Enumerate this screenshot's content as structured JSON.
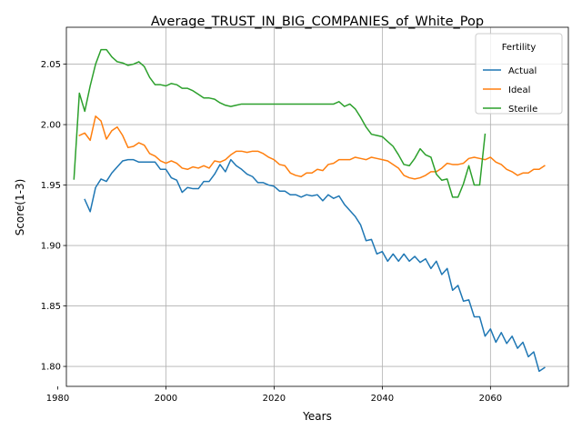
{
  "chart_data": {
    "type": "line",
    "title": "Average_TRUST_IN_BIG_COMPANIES_of_White_Pop",
    "xlabel": "Years",
    "ylabel": "Score(1-3)",
    "xlim": [
      1981.6,
      2074.4
    ],
    "ylim": [
      1.7835,
      2.0805
    ],
    "xticks": [
      1980,
      2000,
      2020,
      2040,
      2060
    ],
    "yticks": [
      1.8,
      1.85,
      1.9,
      1.95,
      2.0,
      2.05
    ],
    "xtick_labels": [
      "1980",
      "2000",
      "2020",
      "2040",
      "2060"
    ],
    "ytick_labels": [
      "1.80",
      "1.85",
      "1.90",
      "1.95",
      "2.00",
      "2.05"
    ],
    "grid": true,
    "legend": {
      "title": "Fertility",
      "placement": "top-right"
    },
    "series": [
      {
        "name": "Actual",
        "color": "#1f77b4",
        "x": [
          1985,
          1986,
          1987,
          1988,
          1989,
          1990,
          1991,
          1992,
          1993,
          1994,
          1995,
          1996,
          1997,
          1998,
          1999,
          2000,
          2001,
          2002,
          2003,
          2004,
          2005,
          2006,
          2007,
          2008,
          2009,
          2010,
          2011,
          2012,
          2013,
          2014,
          2015,
          2016,
          2017,
          2018,
          2019,
          2020,
          2021,
          2022,
          2023,
          2024,
          2025,
          2026,
          2027,
          2028,
          2029,
          2030,
          2031,
          2032,
          2033,
          2034,
          2035,
          2036,
          2037,
          2038,
          2039,
          2040,
          2041,
          2042,
          2043,
          2044,
          2045,
          2046,
          2047,
          2048,
          2049,
          2050,
          2051,
          2052,
          2053,
          2054,
          2055,
          2056,
          2057,
          2058,
          2059,
          2060,
          2061,
          2062,
          2063,
          2064,
          2065,
          2066,
          2067,
          2068,
          2069,
          2070
        ],
        "values": [
          1.938,
          1.928,
          1.948,
          1.955,
          1.953,
          1.96,
          1.965,
          1.97,
          1.971,
          1.971,
          1.969,
          1.969,
          1.969,
          1.969,
          1.963,
          1.963,
          1.956,
          1.954,
          1.944,
          1.948,
          1.947,
          1.947,
          1.953,
          1.953,
          1.959,
          1.967,
          1.961,
          1.971,
          1.966,
          1.963,
          1.959,
          1.957,
          1.952,
          1.952,
          1.95,
          1.949,
          1.945,
          1.945,
          1.942,
          1.942,
          1.94,
          1.942,
          1.941,
          1.942,
          1.937,
          1.942,
          1.939,
          1.941,
          1.934,
          1.929,
          1.924,
          1.917,
          1.904,
          1.905,
          1.893,
          1.895,
          1.887,
          1.893,
          1.887,
          1.893,
          1.887,
          1.891,
          1.886,
          1.889,
          1.881,
          1.887,
          1.876,
          1.881,
          1.863,
          1.867,
          1.854,
          1.855,
          1.841,
          1.841,
          1.825,
          1.831,
          1.82,
          1.828,
          1.819,
          1.825,
          1.815,
          1.82,
          1.808,
          1.812,
          1.796,
          1.799
        ]
      },
      {
        "name": "Ideal",
        "color": "#ff7f0e",
        "x": [
          1984,
          1985,
          1986,
          1987,
          1988,
          1989,
          1990,
          1991,
          1992,
          1993,
          1994,
          1995,
          1996,
          1997,
          1998,
          1999,
          2000,
          2001,
          2002,
          2003,
          2004,
          2005,
          2006,
          2007,
          2008,
          2009,
          2010,
          2011,
          2012,
          2013,
          2014,
          2015,
          2016,
          2017,
          2018,
          2019,
          2020,
          2021,
          2022,
          2023,
          2024,
          2025,
          2026,
          2027,
          2028,
          2029,
          2030,
          2031,
          2032,
          2033,
          2034,
          2035,
          2036,
          2037,
          2038,
          2039,
          2040,
          2041,
          2042,
          2043,
          2044,
          2045,
          2046,
          2047,
          2048,
          2049,
          2050,
          2051,
          2052,
          2053,
          2054,
          2055,
          2056,
          2057,
          2058,
          2059,
          2060,
          2061,
          2062,
          2063,
          2064,
          2065,
          2066,
          2067,
          2068,
          2069,
          2070
        ],
        "values": [
          1.991,
          1.993,
          1.987,
          2.007,
          2.003,
          1.988,
          1.995,
          1.998,
          1.991,
          1.981,
          1.982,
          1.985,
          1.983,
          1.976,
          1.974,
          1.97,
          1.968,
          1.97,
          1.968,
          1.964,
          1.963,
          1.965,
          1.964,
          1.966,
          1.964,
          1.97,
          1.969,
          1.971,
          1.975,
          1.978,
          1.978,
          1.977,
          1.978,
          1.978,
          1.976,
          1.973,
          1.971,
          1.967,
          1.966,
          1.96,
          1.958,
          1.957,
          1.96,
          1.96,
          1.963,
          1.962,
          1.967,
          1.968,
          1.971,
          1.971,
          1.971,
          1.973,
          1.972,
          1.971,
          1.973,
          1.972,
          1.971,
          1.97,
          1.967,
          1.964,
          1.958,
          1.956,
          1.955,
          1.956,
          1.958,
          1.961,
          1.961,
          1.964,
          1.968,
          1.967,
          1.967,
          1.968,
          1.972,
          1.973,
          1.972,
          1.971,
          1.973,
          1.969,
          1.967,
          1.963,
          1.961,
          1.958,
          1.96,
          1.96,
          1.963,
          1.963,
          1.966
        ]
      },
      {
        "name": "Sterile",
        "color": "#2ca02c",
        "x": [
          1983,
          1984,
          1985,
          1986,
          1987,
          1988,
          1989,
          1990,
          1991,
          1992,
          1993,
          1994,
          1995,
          1996,
          1997,
          1998,
          1999,
          2000,
          2001,
          2002,
          2003,
          2004,
          2005,
          2006,
          2007,
          2008,
          2009,
          2010,
          2011,
          2012,
          2013,
          2014,
          2015,
          2016,
          2017,
          2018,
          2019,
          2020,
          2021,
          2022,
          2023,
          2024,
          2025,
          2026,
          2027,
          2028,
          2029,
          2030,
          2031,
          2032,
          2033,
          2034,
          2035,
          2036,
          2037,
          2038,
          2039,
          2040,
          2041,
          2042,
          2043,
          2044,
          2045,
          2046,
          2047,
          2048,
          2049,
          2050,
          2051,
          2052,
          2053,
          2054,
          2055,
          2056,
          2057,
          2058,
          2059
        ],
        "values": [
          1.955,
          2.026,
          2.011,
          2.032,
          2.05,
          2.062,
          2.062,
          2.056,
          2.052,
          2.051,
          2.049,
          2.05,
          2.052,
          2.048,
          2.039,
          2.033,
          2.033,
          2.032,
          2.034,
          2.033,
          2.03,
          2.03,
          2.028,
          2.025,
          2.022,
          2.022,
          2.021,
          2.018,
          2.016,
          2.015,
          2.016,
          2.017,
          2.017,
          2.017,
          2.017,
          2.017,
          2.017,
          2.017,
          2.017,
          2.017,
          2.017,
          2.017,
          2.017,
          2.017,
          2.017,
          2.017,
          2.017,
          2.017,
          2.017,
          2.019,
          2.015,
          2.017,
          2.013,
          2.006,
          1.998,
          1.992,
          1.991,
          1.99,
          1.986,
          1.982,
          1.975,
          1.967,
          1.966,
          1.972,
          1.98,
          1.975,
          1.973,
          1.959,
          1.954,
          1.955,
          1.94,
          1.94,
          1.951,
          1.966,
          1.95,
          1.95,
          1.992
        ]
      }
    ]
  }
}
